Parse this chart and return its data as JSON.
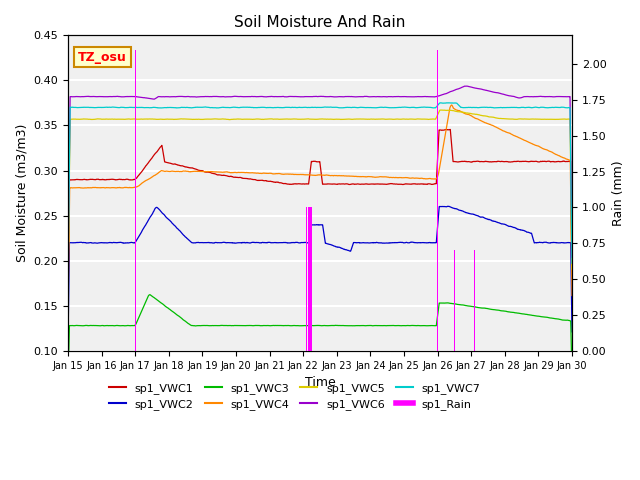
{
  "title": "Soil Moisture And Rain",
  "xlabel": "Time",
  "ylabel_left": "Soil Moisture (m3/m3)",
  "ylabel_right": "Rain (mm)",
  "annotation": "TZ_osu",
  "xlim_days": [
    0,
    15
  ],
  "ylim_left": [
    0.1,
    0.45
  ],
  "ylim_right": [
    0.0,
    2.2
  ],
  "x_tick_labels": [
    "Jan 15",
    "Jan 16",
    "Jan 17",
    "Jan 18",
    "Jan 19",
    "Jan 20",
    "Jan 21",
    "Jan 22",
    "Jan 23",
    "Jan 24",
    "Jan 25",
    "Jan 26",
    "Jan 27",
    "Jan 28",
    "Jan 29",
    "Jan 30"
  ],
  "series_colors": {
    "VWC1": "#cc0000",
    "VWC2": "#0000cc",
    "VWC3": "#00bb00",
    "VWC4": "#ff8800",
    "VWC5": "#ddcc00",
    "VWC6": "#9900cc",
    "VWC7": "#00cccc",
    "Rain": "#ff00ff"
  },
  "background_color": "#f0f0f0",
  "grid_color": "#ffffff",
  "annotation_bg": "#ffffcc",
  "annotation_border": "#cc8800"
}
